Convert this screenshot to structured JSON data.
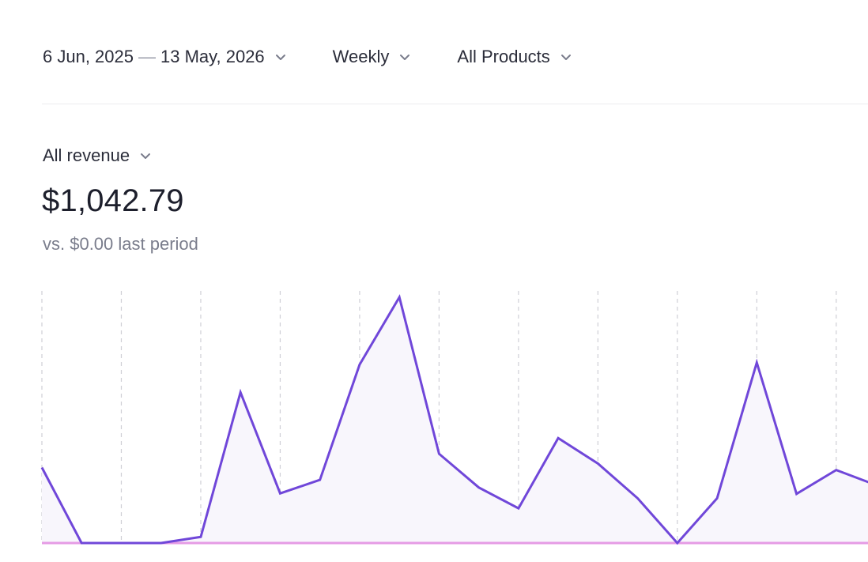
{
  "filters": {
    "date_range": {
      "start": "6 Jun, 2025",
      "separator": "—",
      "end": "13 May, 2026"
    },
    "period": "Weekly",
    "product": "All Products"
  },
  "metric": {
    "selector_label": "All revenue",
    "value": "$1,042.79",
    "comparison": "vs. $0.00 last period"
  },
  "icons": [
    "chevron-down-icon"
  ],
  "colors": {
    "line": "#7047d9",
    "area_fill": "#f8f6fc",
    "baseline": "#e59be5",
    "gridline": "#cfcfd6"
  },
  "chart_data": {
    "type": "area",
    "x": [
      0,
      1,
      2,
      3,
      4,
      5,
      6,
      7,
      8,
      9,
      10,
      11,
      12,
      13,
      14,
      15,
      16,
      17,
      18,
      19,
      20,
      21
    ],
    "values": [
      30.7,
      0,
      0,
      0,
      2.5,
      61.3,
      20.2,
      25.7,
      72.6,
      100,
      36.3,
      22.6,
      14.1,
      42.7,
      32.3,
      18.2,
      0,
      18.2,
      73.4,
      20.0,
      29.7,
      23.6
    ],
    "ylim": [
      0,
      100
    ],
    "xlim": [
      0,
      20.8
    ],
    "vertical_grid_at": [
      0,
      2,
      4,
      6,
      8,
      10,
      12,
      14,
      16,
      18,
      20
    ],
    "grid": "vertical dashed",
    "xlabel": "",
    "ylabel": ""
  }
}
